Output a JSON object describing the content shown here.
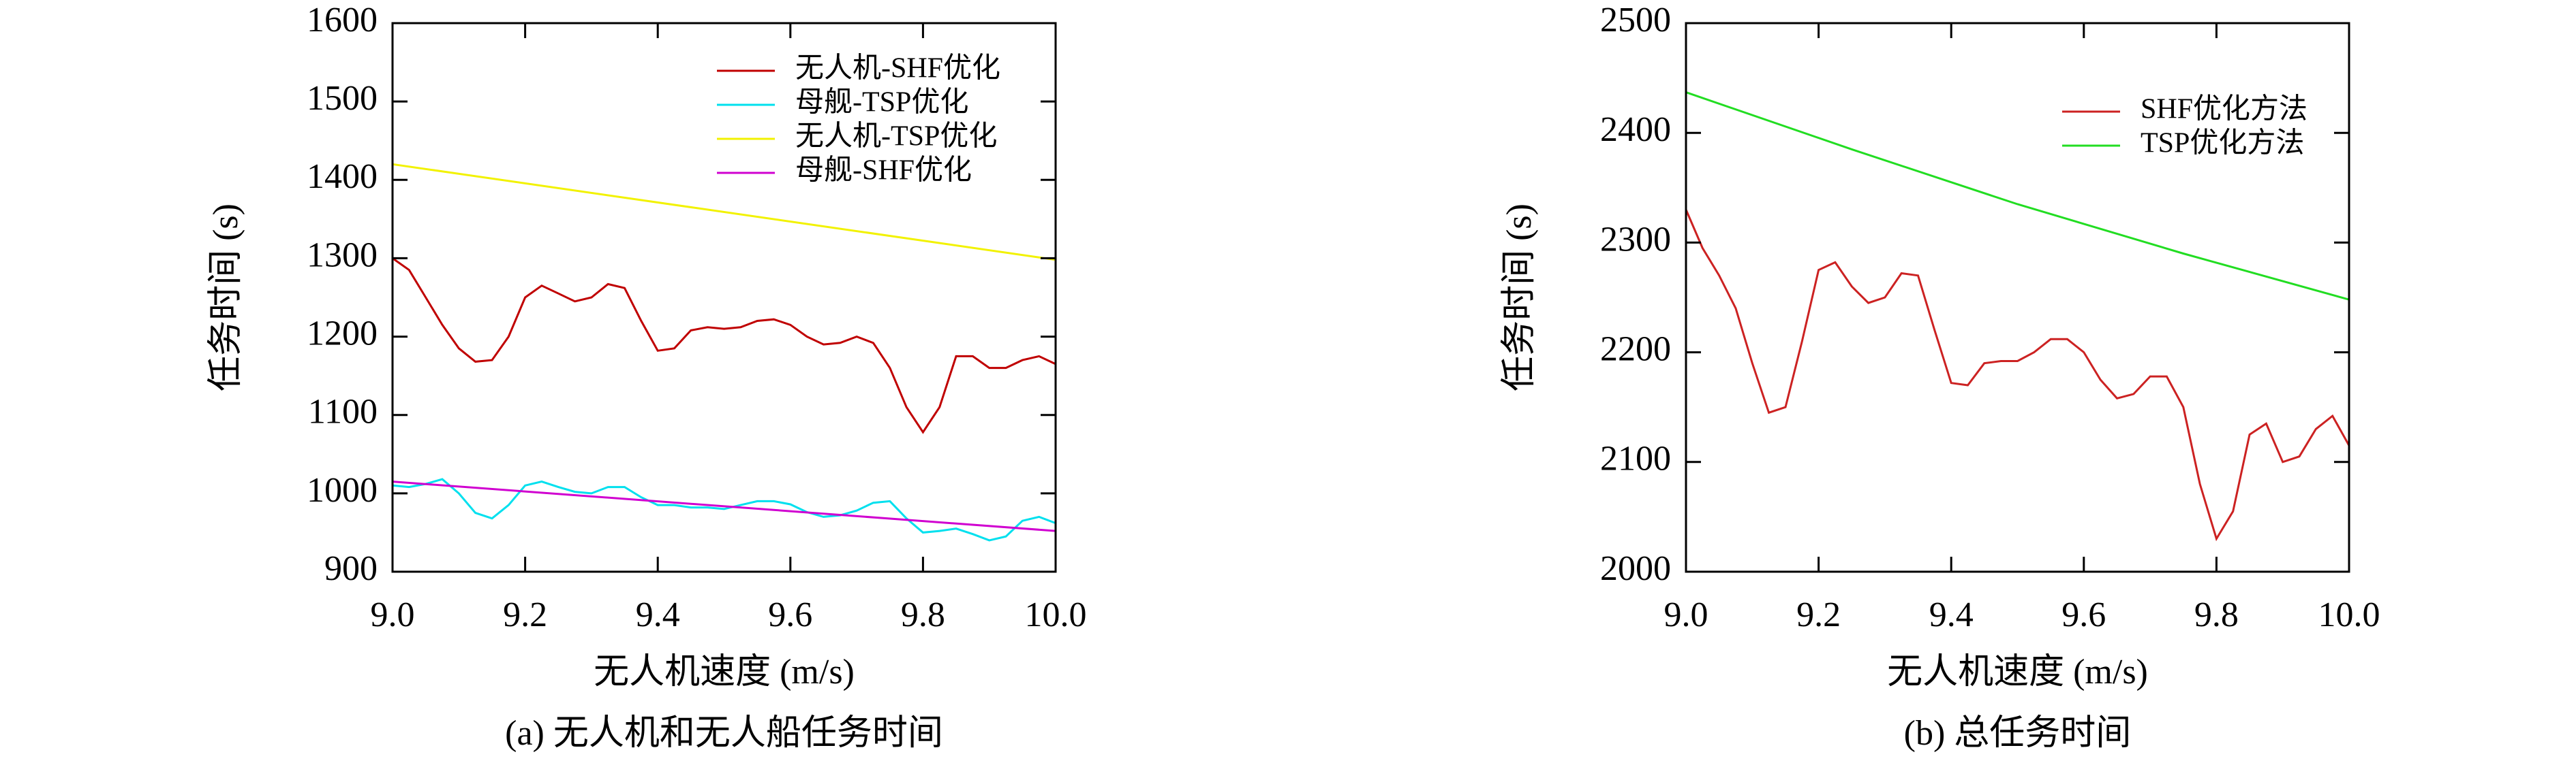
{
  "chart_data": [
    {
      "type": "line",
      "caption": "(a) 无人机和无人船任务时间",
      "xlabel": "无人机速度 (m/s)",
      "ylabel": "任务时间 (s)",
      "xlim": [
        9.0,
        10.0
      ],
      "ylim": [
        900,
        1600
      ],
      "xticks": [
        {
          "value": 9.0,
          "label": "9.0"
        },
        9.2,
        9.4,
        9.6,
        9.8,
        {
          "value": 10.0,
          "label": "10.0"
        }
      ],
      "yticks": [
        900,
        1000,
        1100,
        1200,
        1300,
        1400,
        1500,
        1600
      ],
      "legend": "upper right",
      "series": [
        {
          "name": "无人机-SHF优化",
          "color": "#c00000",
          "x": [
            9.0,
            9.025,
            9.05,
            9.075,
            9.1,
            9.125,
            9.15,
            9.175,
            9.2,
            9.225,
            9.25,
            9.275,
            9.3,
            9.325,
            9.35,
            9.375,
            9.4,
            9.425,
            9.45,
            9.475,
            9.5,
            9.525,
            9.55,
            9.575,
            9.6,
            9.625,
            9.65,
            9.675,
            9.7,
            9.725,
            9.75,
            9.775,
            9.8,
            9.825,
            9.85,
            9.875,
            9.9,
            9.925,
            9.95,
            9.975,
            10.0
          ],
          "values": [
            1300,
            1285,
            1250,
            1215,
            1185,
            1168,
            1170,
            1200,
            1250,
            1265,
            1255,
            1245,
            1250,
            1267,
            1262,
            1220,
            1182,
            1185,
            1208,
            1212,
            1210,
            1212,
            1220,
            1222,
            1215,
            1200,
            1190,
            1192,
            1200,
            1192,
            1160,
            1110,
            1078,
            1110,
            1175,
            1175,
            1160,
            1160,
            1170,
            1175,
            1165
          ]
        },
        {
          "name": "母舰-TSP优化",
          "color": "#00e0ee",
          "x": [
            9.0,
            9.025,
            9.05,
            9.075,
            9.1,
            9.125,
            9.15,
            9.175,
            9.2,
            9.225,
            9.25,
            9.275,
            9.3,
            9.325,
            9.35,
            9.375,
            9.4,
            9.425,
            9.45,
            9.475,
            9.5,
            9.525,
            9.55,
            9.575,
            9.6,
            9.625,
            9.65,
            9.675,
            9.7,
            9.725,
            9.75,
            9.775,
            9.8,
            9.825,
            9.85,
            9.875,
            9.9,
            9.925,
            9.95,
            9.975,
            10.0
          ],
          "values": [
            1010,
            1008,
            1012,
            1018,
            1000,
            975,
            968,
            985,
            1010,
            1015,
            1008,
            1002,
            1000,
            1008,
            1008,
            995,
            985,
            985,
            982,
            982,
            980,
            985,
            990,
            990,
            986,
            976,
            970,
            972,
            978,
            988,
            990,
            968,
            950,
            952,
            955,
            948,
            940,
            945,
            965,
            970,
            962
          ]
        },
        {
          "name": "无人机-TSP优化",
          "color": "#f2f200",
          "x": [
            9.0,
            10.0
          ],
          "values": [
            1420,
            1298
          ]
        },
        {
          "name": "母舰-SHF优化",
          "color": "#d000d0",
          "x": [
            9.0,
            10.0
          ],
          "values": [
            1015,
            952
          ]
        }
      ]
    },
    {
      "type": "line",
      "caption": "(b) 总任务时间",
      "xlabel": "无人机速度 (m/s)",
      "ylabel": "任务时间 (s)",
      "xlim": [
        9.0,
        10.0
      ],
      "ylim": [
        2000,
        2500
      ],
      "xticks": [
        {
          "value": 9.0,
          "label": "9.0"
        },
        9.2,
        9.4,
        9.6,
        9.8,
        {
          "value": 10.0,
          "label": "10.0"
        }
      ],
      "yticks": [
        2000,
        2100,
        2200,
        2300,
        2400,
        2500
      ],
      "legend": "upper right",
      "series": [
        {
          "name": "SHF优化方法",
          "color": "#cc2222",
          "x": [
            9.0,
            9.025,
            9.05,
            9.075,
            9.1,
            9.125,
            9.15,
            9.175,
            9.2,
            9.225,
            9.25,
            9.275,
            9.3,
            9.325,
            9.35,
            9.375,
            9.4,
            9.425,
            9.45,
            9.475,
            9.5,
            9.525,
            9.55,
            9.575,
            9.6,
            9.625,
            9.65,
            9.675,
            9.7,
            9.725,
            9.75,
            9.775,
            9.8,
            9.825,
            9.85,
            9.875,
            9.9,
            9.925,
            9.95,
            9.975,
            10.0
          ],
          "values": [
            2330,
            2295,
            2270,
            2240,
            2190,
            2145,
            2150,
            2210,
            2275,
            2282,
            2260,
            2245,
            2250,
            2272,
            2270,
            2220,
            2172,
            2170,
            2190,
            2192,
            2192,
            2200,
            2212,
            2212,
            2200,
            2175,
            2158,
            2162,
            2178,
            2178,
            2150,
            2080,
            2030,
            2055,
            2125,
            2135,
            2100,
            2105,
            2130,
            2142,
            2115
          ]
        },
        {
          "name": "TSP优化方法",
          "color": "#22dd22",
          "x": [
            9.0,
            9.25,
            9.5,
            9.75,
            10.0
          ],
          "values": [
            2437,
            2385,
            2335,
            2290,
            2248
          ]
        }
      ]
    }
  ]
}
